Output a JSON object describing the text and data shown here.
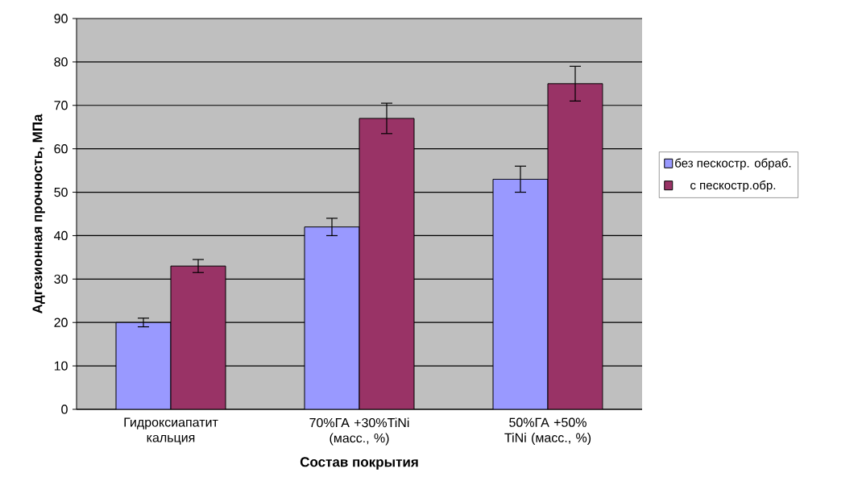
{
  "chart_data": {
    "type": "bar",
    "xlabel": "Состав покрытия",
    "ylabel": "Адгезионная прочность, МПа",
    "categories": [
      "Гидроксиапатит кальция",
      "70%ГА +30%TiNi (масс., %)",
      "50%ГА +50% TiNi (масс., %)"
    ],
    "series": [
      {
        "name": "без пескостр. обраб.",
        "color": "#9999ff",
        "values": [
          20,
          42,
          53
        ],
        "errors": [
          1,
          2,
          3
        ]
      },
      {
        "name": "с пескостр.обр.",
        "color": "#993366",
        "values": [
          33,
          67,
          75
        ],
        "errors": [
          1.5,
          3.5,
          4
        ]
      }
    ],
    "ylim": [
      0,
      90
    ],
    "yticks": [
      0,
      10,
      20,
      30,
      40,
      50,
      60,
      70,
      80,
      90
    ],
    "grid": "y",
    "legend": "right"
  }
}
